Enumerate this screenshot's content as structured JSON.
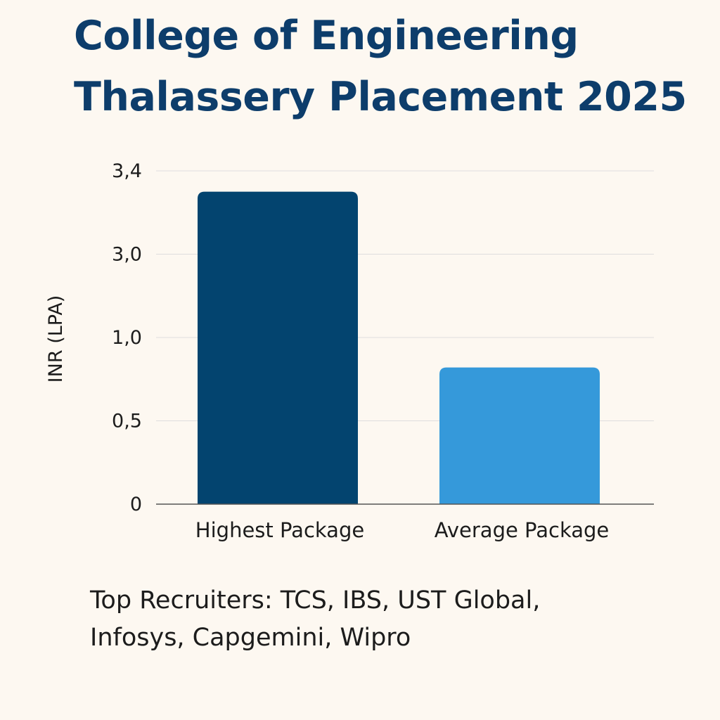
{
  "header": {
    "title_line1": "College of Engineering",
    "title_line2": "Thalassery Placement 2025"
  },
  "colors": {
    "background": "#fdf8f1",
    "title": "#0d3d6b",
    "bar_highest": "#03446f",
    "bar_average": "#3599da",
    "gridline": "#dedede",
    "axis": "#555555",
    "text": "#1c1c1c"
  },
  "chart_data": {
    "type": "bar",
    "title": "College of Engineering Thalassery Placement 2025",
    "xlabel": "",
    "ylabel": "INR (LPA)",
    "grid": true,
    "categories": [
      "Highest Package",
      "Average Package"
    ],
    "values": [
      3.3,
      0.82
    ],
    "ylim": [
      0,
      3.4
    ],
    "y_ticks": [
      {
        "label": "0",
        "value": 0
      },
      {
        "label": "0,5",
        "value": 0.5
      },
      {
        "label": "1,0",
        "value": 1.0
      },
      {
        "label": "3,0",
        "value": 3.0
      },
      {
        "label": "3,4",
        "value": 3.4
      }
    ]
  },
  "footer": {
    "recruiters_line1": "Top Recruiters: TCS, IBS, UST Global,",
    "recruiters_line2": "Infosys, Capgemini, Wipro"
  }
}
